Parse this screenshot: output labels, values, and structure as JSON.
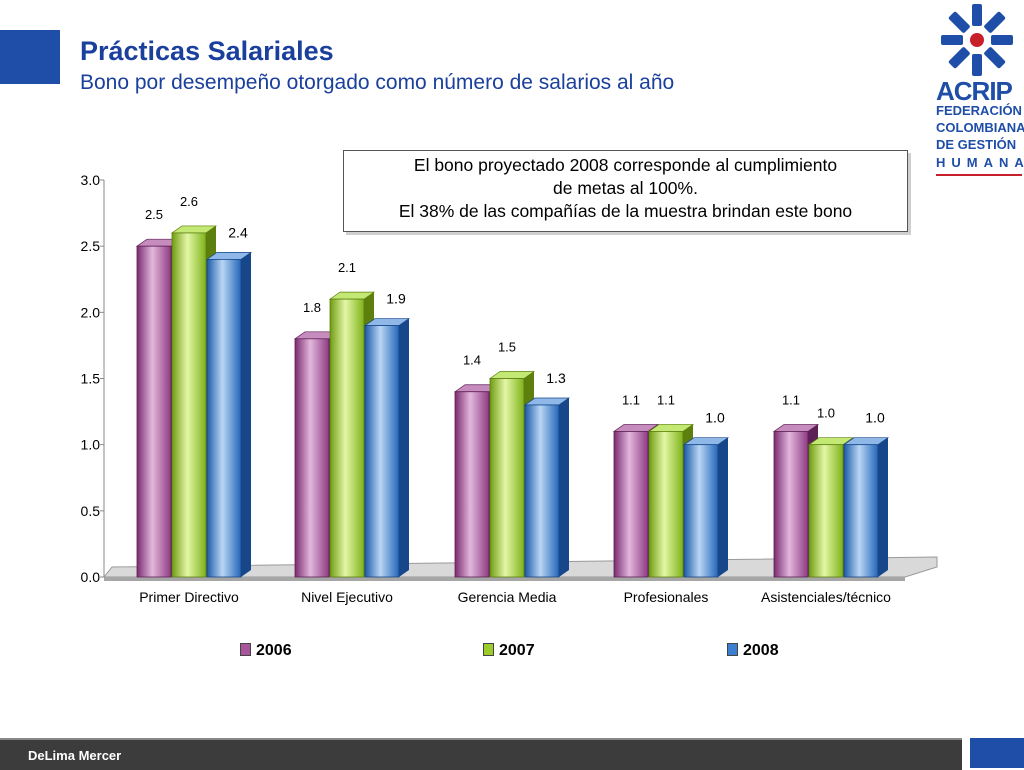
{
  "header": {
    "title": "Prácticas Salariales",
    "subtitle": "Bono por desempeño otorgado como número de salarios al año"
  },
  "logo": {
    "name": "ACRIP",
    "lines": [
      "FEDERACIÓN",
      "COLOMBIANA",
      "DE GESTIÓN",
      "HUMANA"
    ],
    "colors": {
      "primary": "#1f4ea8",
      "accent": "#c8202b"
    }
  },
  "note": {
    "lines": [
      "El  bono  proyectado 2008 corresponde al cumplimiento",
      "de metas al 100%.",
      "El 38% de las compañías de la muestra brindan este bono"
    ]
  },
  "chart_data": {
    "type": "bar",
    "categories": [
      "Primer Directivo",
      "Nivel Ejecutivo",
      "Gerencia Media",
      "Profesionales",
      "Asistenciales/técnico"
    ],
    "series": [
      {
        "name": "2006",
        "values": [
          2.5,
          1.8,
          1.4,
          1.1,
          1.1
        ],
        "labels": [
          "2.5",
          "1.8",
          "1.4",
          "1.1",
          "1.1"
        ],
        "color": "#a8569c"
      },
      {
        "name": "2007",
        "values": [
          2.6,
          2.1,
          1.5,
          1.1,
          1.0
        ],
        "labels": [
          "2.6",
          "2.1",
          "1.5",
          "1.1",
          "1.0"
        ],
        "color": "#9ccc2c"
      },
      {
        "name": "2008",
        "values": [
          2.4,
          1.9,
          1.3,
          1.0,
          1.0
        ],
        "labels": [
          "2.4",
          "1.9",
          "1.3",
          "1.0",
          "1.0"
        ],
        "color": "#3a7fd0"
      }
    ],
    "ylim": [
      0,
      3
    ],
    "yticks": [
      "0.0",
      "0.5",
      "1.0",
      "1.5",
      "2.0",
      "2.5",
      "3.0"
    ],
    "legend_position": "bottom",
    "grid": false
  },
  "footer": {
    "text": "DeLima Mercer"
  }
}
